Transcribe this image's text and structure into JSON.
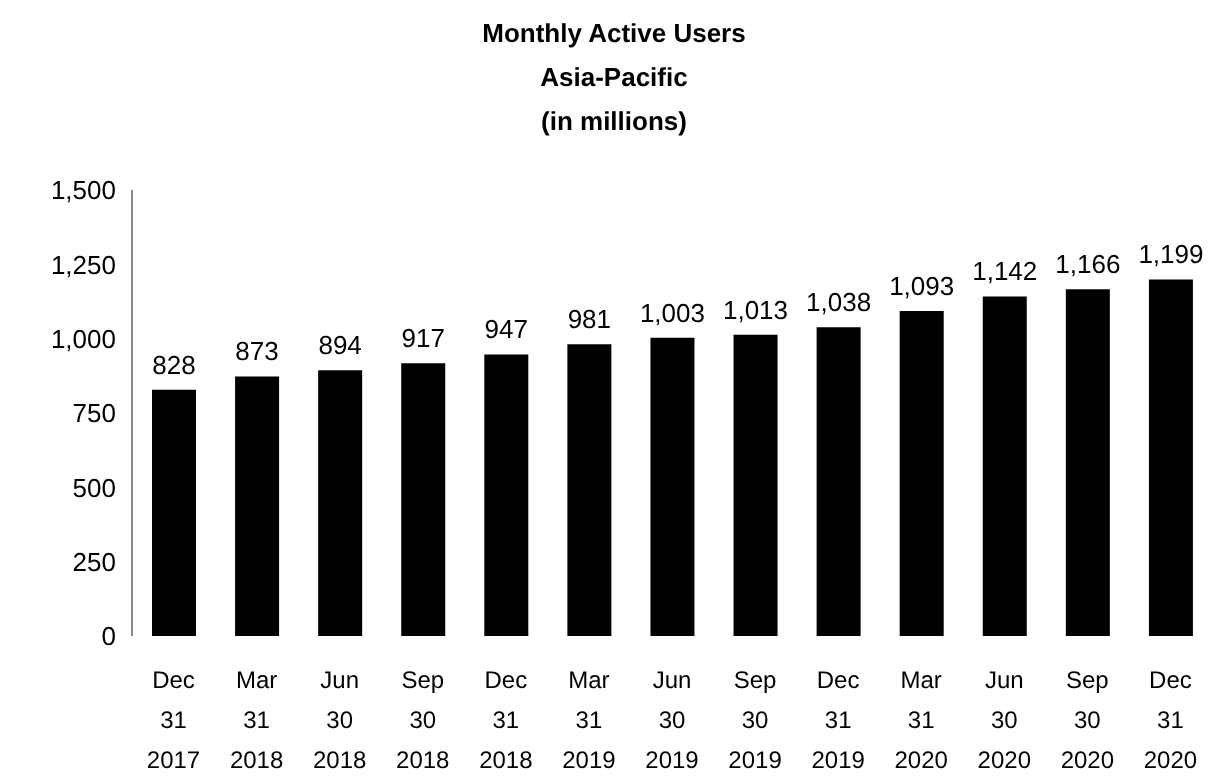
{
  "chart_data": {
    "type": "bar",
    "title": "Monthly Active Users",
    "subtitle": "Asia-Pacific\n(in millions)",
    "categories": [
      "Dec\n31\n2017",
      "Mar\n31\n2018",
      "Jun\n30\n2018",
      "Sep\n30\n2018",
      "Dec\n31\n2018",
      "Mar\n31\n2019",
      "Jun\n30\n2019",
      "Sep\n30\n2019",
      "Dec\n31\n2019",
      "Mar\n31\n2020",
      "Jun\n30\n2020",
      "Sep\n30\n2020",
      "Dec\n31\n2020"
    ],
    "values": [
      828,
      873,
      894,
      917,
      947,
      981,
      1003,
      1013,
      1038,
      1093,
      1142,
      1166,
      1199
    ],
    "value_labels": [
      "828",
      "873",
      "894",
      "917",
      "947",
      "981",
      "1,003",
      "1,013",
      "1,038",
      "1,093",
      "1,142",
      "1,166",
      "1,199"
    ],
    "color": "#000000",
    "ylim": [
      0,
      1500
    ],
    "yticks": [
      0,
      250,
      500,
      750,
      {
        "value": 1000,
        "label": "1,000"
      },
      {
        "value": 1250,
        "label": "1,250"
      },
      {
        "value": 1500,
        "label": "1,500"
      }
    ],
    "grid": false,
    "legend": false
  }
}
